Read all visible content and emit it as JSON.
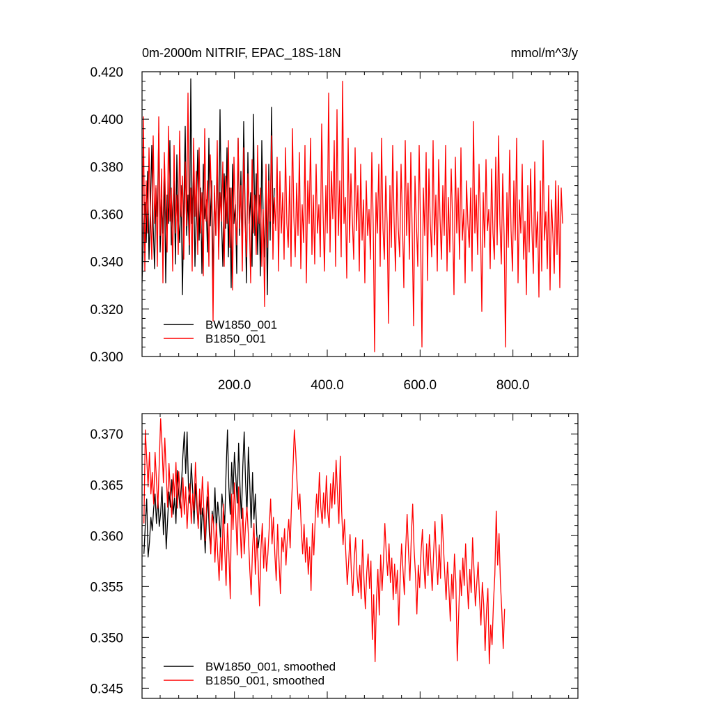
{
  "chart_data": [
    {
      "type": "line",
      "title": "0m-2000m NITRIF, EPAC_18S-18N",
      "units": "mmol/m^3/y",
      "xlim": [
        1,
        940
      ],
      "ylim": [
        0.3,
        0.42
      ],
      "xticks": [
        200,
        400,
        600,
        800
      ],
      "xtick_labels": [
        "200.0",
        "400.0",
        "600.0",
        "800.0"
      ],
      "yticks": [
        0.3,
        0.32,
        0.34,
        0.36,
        0.38,
        0.4,
        0.42
      ],
      "ytick_labels": [
        "0.300",
        "0.320",
        "0.340",
        "0.360",
        "0.380",
        "0.400",
        "0.420"
      ],
      "legend": [
        "BW1850_001",
        "B1850_001"
      ],
      "legend_position": "bottom-left",
      "series": [
        {
          "name": "BW1850_001",
          "color": "#000000",
          "x_start": 1,
          "x_step": 3,
          "values": [
            0.331,
            0.352,
            0.365,
            0.348,
            0.378,
            0.341,
            0.362,
            0.389,
            0.355,
            0.337,
            0.371,
            0.359,
            0.394,
            0.344,
            0.366,
            0.352,
            0.381,
            0.331,
            0.368,
            0.356,
            0.391,
            0.347,
            0.362,
            0.374,
            0.339,
            0.385,
            0.358,
            0.348,
            0.372,
            0.326,
            0.363,
            0.397,
            0.351,
            0.368,
            0.343,
            0.417,
            0.356,
            0.378,
            0.338,
            0.362,
            0.387,
            0.349,
            0.371,
            0.335,
            0.381,
            0.358,
            0.366,
            0.344,
            0.392,
            0.355,
            0.374,
            0.332,
            0.369,
            0.351,
            0.383,
            0.346,
            0.404,
            0.359,
            0.338,
            0.377,
            0.354,
            0.388,
            0.342,
            0.371,
            0.329,
            0.381,
            0.356,
            0.364,
            0.335,
            0.392,
            0.351,
            0.378,
            0.345,
            0.399,
            0.362,
            0.331,
            0.386,
            0.356,
            0.369,
            0.338,
            0.402,
            0.351,
            0.377,
            0.343,
            0.368,
            0.334,
            0.391,
            0.359,
            0.342,
            0.373,
            0.326,
            0.381,
            0.349,
            0.405,
            0.356,
            0.371
          ]
        },
        {
          "name": "B1850_001",
          "color": "#ff0000",
          "x_start": 1,
          "x_step": 3,
          "values": [
            0.342,
            0.401,
            0.336,
            0.374,
            0.352,
            0.388,
            0.361,
            0.341,
            0.393,
            0.356,
            0.372,
            0.338,
            0.401,
            0.351,
            0.379,
            0.331,
            0.386,
            0.362,
            0.344,
            0.397,
            0.357,
            0.371,
            0.336,
            0.389,
            0.352,
            0.368,
            0.343,
            0.395,
            0.359,
            0.376,
            0.341,
            0.382,
            0.355,
            0.411,
            0.347,
            0.371,
            0.336,
            0.392,
            0.359,
            0.378,
            0.343,
            0.388,
            0.352,
            0.369,
            0.334,
            0.396,
            0.357,
            0.374,
            0.338,
            0.385,
            0.363,
            0.315,
            0.372,
            0.351,
            0.391,
            0.341,
            0.369,
            0.357,
            0.382,
            0.338,
            0.376,
            0.356,
            0.391,
            0.346,
            0.371,
            0.328,
            0.384,
            0.361,
            0.347,
            0.392,
            0.354,
            0.372,
            0.336,
            0.388,
            0.356,
            0.342,
            0.377,
            0.359,
            0.331,
            0.383,
            0.352,
            0.368,
            0.343,
            0.389,
            0.356,
            0.371,
            0.338,
            0.362,
            0.321,
            0.381,
            0.346,
            0.374,
            0.357,
            0.393,
            0.341,
            0.367,
            0.353,
            0.384,
            0.336,
            0.378,
            0.352,
            0.369,
            0.341,
            0.388,
            0.356,
            0.346,
            0.376,
            0.338,
            0.396,
            0.359,
            0.342,
            0.373,
            0.351,
            0.386,
            0.337,
            0.364,
            0.348,
            0.389,
            0.331,
            0.374,
            0.356,
            0.392,
            0.343,
            0.368,
            0.339,
            0.381,
            0.352,
            0.364,
            0.342,
            0.398,
            0.361,
            0.336,
            0.372,
            0.352,
            0.411,
            0.344,
            0.378,
            0.358,
            0.391,
            0.338,
            0.404,
            0.351,
            0.374,
            0.342,
            0.416,
            0.356,
            0.367,
            0.333,
            0.392,
            0.348,
            0.377,
            0.358,
            0.341,
            0.388,
            0.353,
            0.372,
            0.336,
            0.381,
            0.349,
            0.366,
            0.331,
            0.374,
            0.351,
            0.362,
            0.341,
            0.386,
            0.356,
            0.302,
            0.369,
            0.352,
            0.381,
            0.338,
            0.392,
            0.354,
            0.341,
            0.376,
            0.356,
            0.314,
            0.372,
            0.346,
            0.389,
            0.357,
            0.336,
            0.378,
            0.354,
            0.342,
            0.381,
            0.357,
            0.329,
            0.391,
            0.351,
            0.373,
            0.341,
            0.386,
            0.352,
            0.313,
            0.376,
            0.356,
            0.338,
            0.389,
            0.353,
            0.304,
            0.371,
            0.351,
            0.386,
            0.332,
            0.379,
            0.356,
            0.342,
            0.391,
            0.347,
            0.368,
            0.336,
            0.383,
            0.358,
            0.341,
            0.372,
            0.351,
            0.389,
            0.336,
            0.367,
            0.344,
            0.379,
            0.357,
            0.326,
            0.384,
            0.352,
            0.371,
            0.341,
            0.388,
            0.349,
            0.362,
            0.331,
            0.374,
            0.356,
            0.346,
            0.371,
            0.336,
            0.399,
            0.352,
            0.368,
            0.343,
            0.381,
            0.357,
            0.319,
            0.369,
            0.346,
            0.383,
            0.353,
            0.362,
            0.337,
            0.379,
            0.352,
            0.341,
            0.384,
            0.347,
            0.393,
            0.356,
            0.339,
            0.377,
            0.351,
            0.304,
            0.369,
            0.346,
            0.387,
            0.353,
            0.336,
            0.374,
            0.349,
            0.392,
            0.331,
            0.366,
            0.352,
            0.381,
            0.341,
            0.357,
            0.326,
            0.372,
            0.344,
            0.379,
            0.353,
            0.335,
            0.382,
            0.346,
            0.361,
            0.325,
            0.374,
            0.336,
            0.391,
            0.349,
            0.361,
            0.337,
            0.372,
            0.328,
            0.366,
            0.352,
            0.335,
            0.374,
            0.343,
            0.372,
            0.329,
            0.371,
            0.356
          ]
        }
      ]
    },
    {
      "type": "line",
      "xlim": [
        1,
        940
      ],
      "ylim": [
        0.344,
        0.372
      ],
      "yticks": [
        0.345,
        0.35,
        0.355,
        0.36,
        0.365,
        0.37
      ],
      "ytick_labels": [
        "0.345",
        "0.350",
        "0.355",
        "0.360",
        "0.365",
        "0.370"
      ],
      "legend": [
        "BW1850_001, smoothed",
        "B1850_001, smoothed"
      ],
      "legend_position": "bottom-left",
      "series": [
        {
          "name": "BW1850_001, smoothed",
          "color": "#000000",
          "x_start": 5,
          "x_step": 3,
          "values": [
            0.3582,
            0.3611,
            0.3636,
            0.3579,
            0.3594,
            0.3618,
            0.3605,
            0.3627,
            0.3641,
            0.3612,
            0.3638,
            0.3609,
            0.3622,
            0.3648,
            0.3601,
            0.3632,
            0.3587,
            0.3615,
            0.3643,
            0.3628,
            0.3655,
            0.3621,
            0.3637,
            0.3612,
            0.3664,
            0.3641,
            0.3627,
            0.3652,
            0.3679,
            0.3702,
            0.3661,
            0.3702,
            0.3648,
            0.3632,
            0.3671,
            0.3645,
            0.3612,
            0.3651,
            0.3629,
            0.3608,
            0.3642,
            0.3596,
            0.3627,
            0.3614,
            0.3583,
            0.3621,
            0.3638,
            0.3601,
            0.3586,
            0.3624,
            0.3612,
            0.3647,
            0.3605,
            0.3633,
            0.3618,
            0.3596,
            0.3641,
            0.3626,
            0.3612,
            0.3663,
            0.3704,
            0.3648,
            0.3621,
            0.3672,
            0.3641,
            0.3682,
            0.3658,
            0.3632,
            0.3691,
            0.3648,
            0.3617,
            0.3668,
            0.3702,
            0.3652,
            0.3621,
            0.3687,
            0.3651,
            0.3608,
            0.3662,
            0.3616,
            0.3641,
            0.3602,
            0.3588,
            0.3601
          ]
        },
        {
          "name": "B1850_001, smoothed",
          "color": "#ff0000",
          "x_start": 5,
          "x_step": 3,
          "values": [
            0.3612,
            0.3704,
            0.3676,
            0.3648,
            0.3682,
            0.3641,
            0.3662,
            0.3631,
            0.3682,
            0.3655,
            0.3627,
            0.3671,
            0.3715,
            0.3688,
            0.3652,
            0.3696,
            0.3662,
            0.3628,
            0.3671,
            0.3642,
            0.3618,
            0.3661,
            0.3638,
            0.3672,
            0.3627,
            0.3663,
            0.3641,
            0.3618,
            0.3657,
            0.3621,
            0.3648,
            0.3607,
            0.3636,
            0.3651,
            0.3612,
            0.3641,
            0.3625,
            0.3672,
            0.3638,
            0.3607,
            0.3646,
            0.3621,
            0.3658,
            0.3627,
            0.3595,
            0.3631,
            0.3653,
            0.3617,
            0.3582,
            0.3621,
            0.3611,
            0.3574,
            0.3612,
            0.3581,
            0.3556,
            0.3598,
            0.3566,
            0.3631,
            0.3587,
            0.3551,
            0.3612,
            0.3582,
            0.3538,
            0.3641,
            0.3606,
            0.3652,
            0.3617,
            0.3581,
            0.3648,
            0.3612,
            0.3578,
            0.3627,
            0.3582,
            0.3612,
            0.3628,
            0.3601,
            0.3567,
            0.3542,
            0.3588,
            0.3612,
            0.3562,
            0.3598,
            0.3574,
            0.3531,
            0.3586,
            0.3612,
            0.3568,
            0.3598,
            0.3565,
            0.3582,
            0.3608,
            0.3636,
            0.3592,
            0.3618,
            0.3582,
            0.3556,
            0.3611,
            0.3575,
            0.3543,
            0.3598,
            0.3584,
            0.3607,
            0.3571,
            0.3598,
            0.3616,
            0.3588,
            0.3632,
            0.3664,
            0.3704,
            0.3682,
            0.3651,
            0.3626,
            0.3641,
            0.3607,
            0.3582,
            0.3611,
            0.3574,
            0.3598,
            0.3562,
            0.3589,
            0.3546,
            0.3612,
            0.3581,
            0.3616,
            0.3641,
            0.3618,
            0.3662,
            0.3628,
            0.3612,
            0.3642,
            0.3617,
            0.3659,
            0.3624,
            0.3608,
            0.3651,
            0.3627,
            0.3662,
            0.3631,
            0.3674,
            0.3641,
            0.3612,
            0.3678,
            0.3624,
            0.3591,
            0.3616,
            0.3582,
            0.3552,
            0.3574,
            0.3601,
            0.3562,
            0.3541,
            0.3576,
            0.3598,
            0.3562,
            0.3544,
            0.3571,
            0.3538,
            0.3596,
            0.3557,
            0.3528,
            0.3564,
            0.3582,
            0.3548,
            0.3575,
            0.3498,
            0.3542,
            0.3476,
            0.3538,
            0.3567,
            0.3522,
            0.3581,
            0.3546,
            0.3574,
            0.3612,
            0.3583,
            0.3561,
            0.3592,
            0.3554,
            0.3578,
            0.3537,
            0.3572,
            0.3543,
            0.3566,
            0.3512,
            0.3558,
            0.3592,
            0.3567,
            0.3542,
            0.3588,
            0.3621,
            0.3584,
            0.3556,
            0.3598,
            0.3631,
            0.3587,
            0.3562,
            0.3523,
            0.3571,
            0.3549,
            0.3584,
            0.3606,
            0.3571,
            0.3548,
            0.3592,
            0.3561,
            0.3601,
            0.3574,
            0.3546,
            0.3582,
            0.3614,
            0.3577,
            0.3552,
            0.3591,
            0.3558,
            0.3621,
            0.3592,
            0.3563,
            0.3537,
            0.3574,
            0.3548,
            0.3516,
            0.3562,
            0.3538,
            0.3582,
            0.3554,
            0.3477,
            0.3521,
            0.3566,
            0.3541,
            0.3578,
            0.3551,
            0.3592,
            0.3558,
            0.3528,
            0.3567,
            0.3544,
            0.3598,
            0.3567,
            0.3531,
            0.3553,
            0.3574,
            0.3538,
            0.3512,
            0.3554,
            0.3532,
            0.3487,
            0.3526,
            0.3548,
            0.3474,
            0.3512,
            0.3493,
            0.3534,
            0.3562,
            0.3624,
            0.3571,
            0.3602,
            0.3554,
            0.3526,
            0.3489,
            0.3528
          ]
        }
      ]
    }
  ]
}
